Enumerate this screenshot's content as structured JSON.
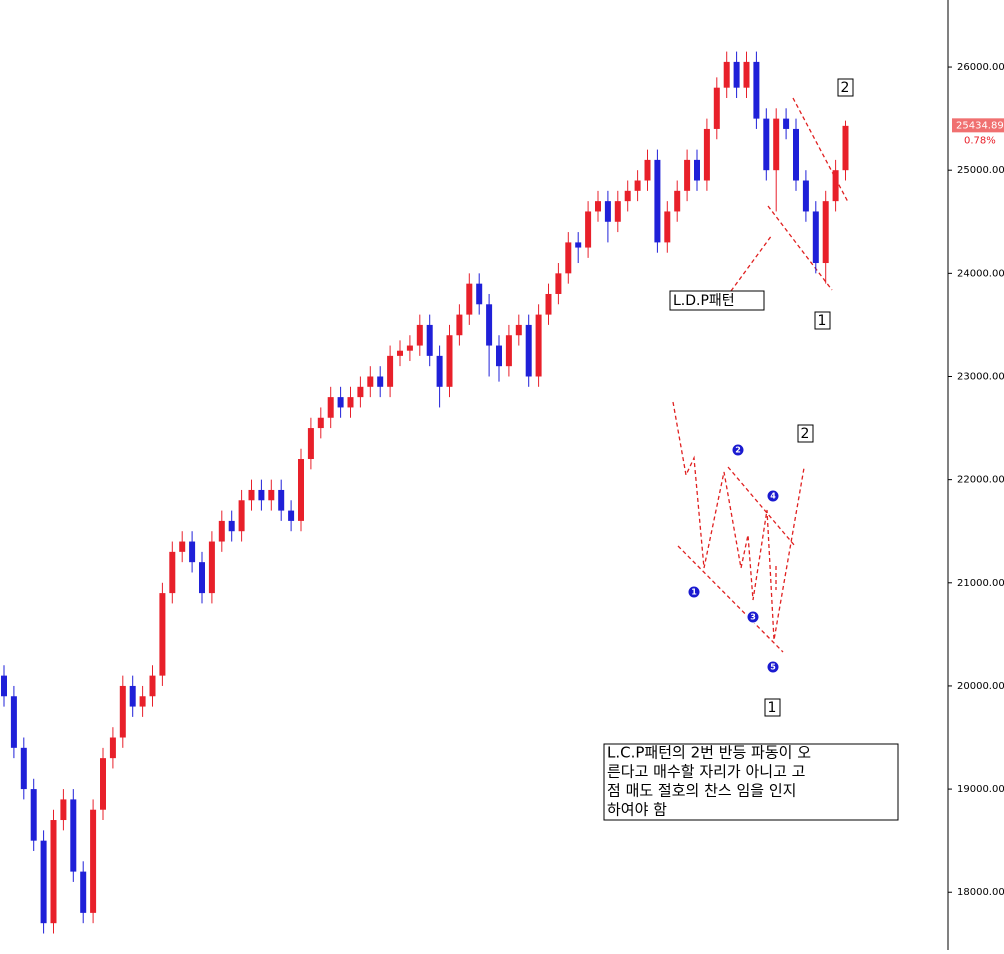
{
  "chart_data": {
    "type": "candlestick",
    "open": [
      20100,
      19900,
      19400,
      19000,
      18500,
      17700,
      18700,
      18900,
      18200,
      17800,
      18800,
      19300,
      19500,
      20000,
      19800,
      19900,
      20100,
      20900,
      21300,
      21400,
      21200,
      20900,
      21400,
      21600,
      21500,
      21800,
      21900,
      21800,
      21900,
      21700,
      21600,
      22200,
      22500,
      22600,
      22800,
      22700,
      22800,
      22900,
      23000,
      22900,
      23200,
      23250,
      23300,
      23500,
      23200,
      22900,
      23400,
      23600,
      23900,
      23700,
      23300,
      23100,
      23400,
      23500,
      23000,
      23600,
      23800,
      24000,
      24300,
      24250,
      24600,
      24700,
      24500,
      24700,
      24800,
      24900,
      25100,
      24300,
      24600,
      24800,
      25100,
      24900,
      25400,
      25800,
      26050,
      25800,
      26050,
      25500,
      25000,
      25500,
      25400,
      24900,
      24600,
      24100,
      24700,
      25000
    ],
    "high": [
      20200,
      20000,
      19500,
      19100,
      18600,
      18800,
      19000,
      19000,
      18300,
      18900,
      19400,
      19600,
      20100,
      20100,
      20000,
      20200,
      21000,
      21400,
      21500,
      21500,
      21300,
      21500,
      21700,
      21700,
      21900,
      22000,
      22000,
      22000,
      22000,
      21800,
      22300,
      22600,
      22700,
      22900,
      22900,
      22900,
      23000,
      23100,
      23100,
      23300,
      23350,
      23400,
      23600,
      23600,
      23300,
      23500,
      23700,
      24000,
      24000,
      23800,
      23400,
      23500,
      23600,
      23600,
      23700,
      23900,
      24100,
      24400,
      24400,
      24700,
      24800,
      24800,
      24800,
      24900,
      25000,
      25200,
      25200,
      24700,
      24900,
      25200,
      25200,
      25500,
      25900,
      26150,
      26150,
      26150,
      26150,
      25600,
      25600,
      25600,
      25500,
      25000,
      24700,
      24800,
      25100,
      25480
    ],
    "low": [
      19800,
      19300,
      18900,
      18400,
      17600,
      17600,
      18600,
      18100,
      17700,
      17700,
      18700,
      19200,
      19400,
      19700,
      19700,
      19800,
      20000,
      20800,
      21200,
      21100,
      20800,
      20800,
      21300,
      21400,
      21400,
      21700,
      21700,
      21700,
      21600,
      21500,
      21500,
      22100,
      22400,
      22500,
      22600,
      22600,
      22700,
      22800,
      22800,
      22800,
      23100,
      23150,
      23200,
      23100,
      22700,
      22800,
      23300,
      23500,
      23600,
      23000,
      22950,
      23000,
      23300,
      22900,
      22900,
      23500,
      23700,
      23900,
      24100,
      24150,
      24500,
      24300,
      24400,
      24600,
      24700,
      24800,
      24200,
      24200,
      24500,
      24700,
      24800,
      24800,
      25300,
      25700,
      25700,
      25700,
      25400,
      24900,
      24600,
      25300,
      24800,
      24500,
      24000,
      23900,
      24600,
      24900
    ],
    "close": [
      19900,
      19400,
      19000,
      18500,
      17700,
      18700,
      18900,
      18200,
      17800,
      18800,
      19300,
      19500,
      20000,
      19800,
      19900,
      20100,
      20900,
      21300,
      21400,
      21200,
      20900,
      21400,
      21600,
      21500,
      21800,
      21900,
      21800,
      21900,
      21700,
      21600,
      22200,
      22500,
      22600,
      22800,
      22700,
      22800,
      22900,
      23000,
      22900,
      23200,
      23250,
      23300,
      23500,
      23200,
      22900,
      23400,
      23600,
      23900,
      23700,
      23300,
      23100,
      23400,
      23500,
      23000,
      23600,
      23800,
      24000,
      24300,
      24250,
      24600,
      24700,
      24500,
      24700,
      24800,
      24900,
      25100,
      24300,
      24600,
      24800,
      25100,
      24900,
      25400,
      25800,
      26050,
      25800,
      26050,
      25500,
      25000,
      25500,
      25400,
      24900,
      24600,
      24100,
      24700,
      25000,
      25430
    ],
    "up_color": "#e8202a",
    "down_color": "#1f20d8",
    "ylim": [
      17440,
      26650
    ],
    "yticks": [
      {
        "value": 18000,
        "label": "18000.00"
      },
      {
        "value": 19000,
        "label": "19000.00"
      },
      {
        "value": 20000,
        "label": "20000.00"
      },
      {
        "value": 21000,
        "label": "21000.00"
      },
      {
        "value": 22000,
        "label": "22000.00"
      },
      {
        "value": 23000,
        "label": "23000.00"
      },
      {
        "value": 24000,
        "label": "24000.00"
      },
      {
        "value": 25000,
        "label": "25000.00"
      },
      {
        "value": 26000,
        "label": "26000.00"
      }
    ],
    "last_price": {
      "value": 25434.89,
      "label": "25434.89"
    },
    "change_label": "0.78%",
    "annotations": {
      "pattern_label": "L.D.P패턴",
      "wave_1": "1",
      "wave_2": "2",
      "diagram_wave_1": "1",
      "diagram_wave_2": "2",
      "circles": [
        "1",
        "2",
        "3",
        "4",
        "5"
      ],
      "note": [
        "L.C.P패턴의 2번 반등 파동이 오",
        "른다고 매수할 자리가 아니고 고",
        "점 매도 절호의 찬스 임을 인지",
        "하여야 함"
      ]
    }
  }
}
